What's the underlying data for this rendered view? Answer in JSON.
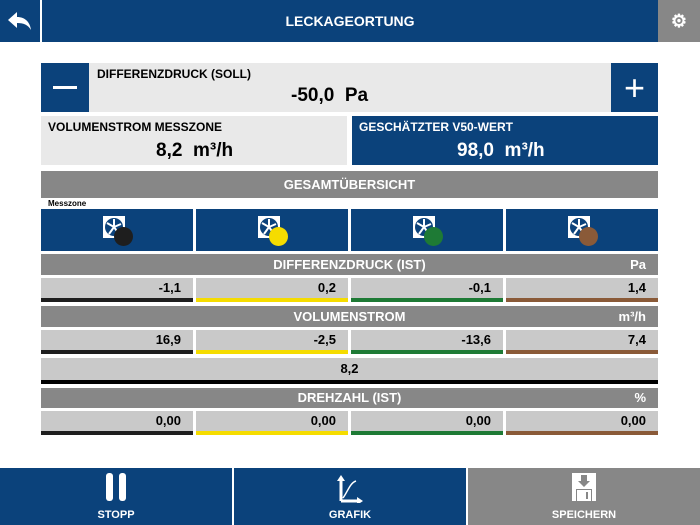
{
  "header": {
    "title": "LECKAGEORTUNG"
  },
  "soll": {
    "label": "DIFFERENZDRUCK (SOLL)",
    "value": "-50,0",
    "unit": "Pa"
  },
  "volumenstrom_messzone": {
    "label": "VOLUMENSTROM MESSZONE",
    "value": "8,2",
    "unit": "m³/h"
  },
  "v50": {
    "label": "GESCHÄTZTER V50-WERT",
    "value": "98,0",
    "unit": "m³/h"
  },
  "overview": {
    "title": "GESAMTÜBERSICHT",
    "messzone_label": "Messzone"
  },
  "zones": [
    {
      "color": "#1e1e1e"
    },
    {
      "color": "#f5dc00"
    },
    {
      "color": "#1e7a35"
    },
    {
      "color": "#8a5a38"
    }
  ],
  "differenzdruck": {
    "title": "DIFFERENZDRUCK (IST)",
    "unit": "Pa",
    "values": [
      "-1,1",
      "0,2",
      "-0,1",
      "1,4"
    ]
  },
  "volumenstrom": {
    "title": "VOLUMENSTROM",
    "unit": "m³/h",
    "values": [
      "16,9",
      "-2,5",
      "-13,6",
      "7,4"
    ],
    "sum": "8,2"
  },
  "drehzahl": {
    "title": "DREHZAHL (IST)",
    "unit": "%",
    "values": [
      "0,00",
      "0,00",
      "0,00",
      "0,00"
    ]
  },
  "footer": {
    "stop": "STOPP",
    "graph": "GRAFIK",
    "save": "SPEICHERN"
  }
}
